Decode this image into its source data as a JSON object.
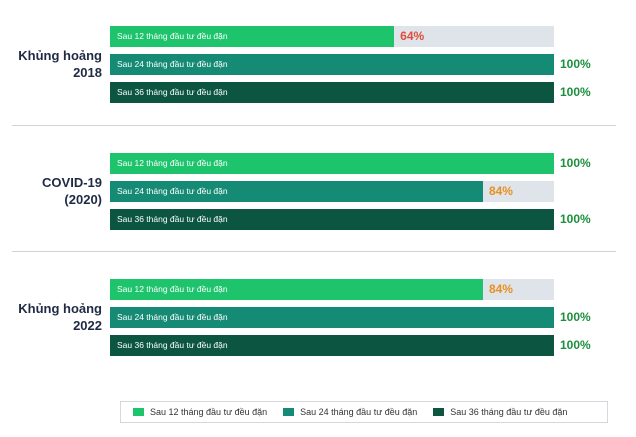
{
  "colors": {
    "series_1": "#1ec46c",
    "series_2": "#158a74",
    "series_3": "#0b5541",
    "track": "#dfe4ea",
    "value_full": "#1a8f3c",
    "value_64": "#e04c3c",
    "value_84": "#e8901e"
  },
  "chart_data": {
    "type": "bar",
    "orientation": "horizontal",
    "xlim": [
      0,
      100
    ],
    "unit": "%",
    "legend_position": "bottom",
    "groups": [
      {
        "label_lines": [
          "Khủng hoảng",
          "2018"
        ],
        "bars": [
          {
            "label": "Sau 12 tháng đầu tư đều đặn",
            "value": 64,
            "value_text": "64%"
          },
          {
            "label": "Sau 24 tháng đầu tư đều đặn",
            "value": 100,
            "value_text": "100%"
          },
          {
            "label": "Sau 36 tháng đầu tư đều đặn",
            "value": 100,
            "value_text": "100%"
          }
        ]
      },
      {
        "label_lines": [
          "COVID-19",
          "(2020)"
        ],
        "bars": [
          {
            "label": "Sau 12 tháng đầu tư đều đặn",
            "value": 100,
            "value_text": "100%"
          },
          {
            "label": "Sau 24 tháng đầu tư đều đặn",
            "value": 84,
            "value_text": "84%"
          },
          {
            "label": "Sau 36 tháng đầu tư đều đặn",
            "value": 100,
            "value_text": "100%"
          }
        ]
      },
      {
        "label_lines": [
          "Khủng hoảng",
          "2022"
        ],
        "bars": [
          {
            "label": "Sau 12 tháng đầu tư đều đặn",
            "value": 84,
            "value_text": "84%"
          },
          {
            "label": "Sau 24 tháng đầu tư đều đặn",
            "value": 100,
            "value_text": "100%"
          },
          {
            "label": "Sau 36 tháng đầu tư đều đặn",
            "value": 100,
            "value_text": "100%"
          }
        ]
      }
    ],
    "legend": [
      "Sau 12 tháng đầu tư đều đặn",
      "Sau 24 tháng đầu tư đều đặn",
      "Sau 36 tháng đầu tư đều đặn"
    ]
  }
}
